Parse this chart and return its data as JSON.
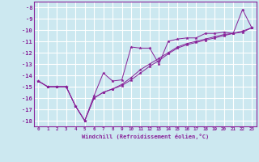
{
  "xlabel": "Windchill (Refroidissement éolien,°C)",
  "background_color": "#cce8f0",
  "grid_color": "#ffffff",
  "line_color": "#882299",
  "x_values": [
    0,
    1,
    2,
    3,
    4,
    5,
    6,
    7,
    8,
    9,
    10,
    11,
    12,
    13,
    14,
    15,
    16,
    17,
    18,
    19,
    20,
    21,
    22,
    23
  ],
  "series1": [
    -14.5,
    -15.0,
    -15.0,
    -15.0,
    -16.7,
    -18.0,
    -15.8,
    -13.8,
    -14.5,
    -14.4,
    -11.5,
    -11.6,
    -11.6,
    -13.0,
    -11.0,
    -10.8,
    -10.7,
    -10.7,
    -10.3,
    -10.3,
    -10.2,
    -10.3,
    -8.2,
    -9.8
  ],
  "series2": [
    -14.5,
    -15.0,
    -15.0,
    -15.0,
    -16.7,
    -18.0,
    -16.0,
    -15.5,
    -15.2,
    -14.8,
    -14.2,
    -13.5,
    -13.0,
    -12.5,
    -12.0,
    -11.5,
    -11.2,
    -11.0,
    -10.8,
    -10.6,
    -10.4,
    -10.3,
    -10.2,
    -9.8
  ],
  "series3": [
    -14.5,
    -15.0,
    -15.0,
    -15.0,
    -16.7,
    -18.0,
    -16.0,
    -15.5,
    -15.2,
    -14.9,
    -14.4,
    -13.8,
    -13.2,
    -12.7,
    -12.1,
    -11.6,
    -11.3,
    -11.1,
    -10.9,
    -10.7,
    -10.5,
    -10.3,
    -10.1,
    -9.8
  ],
  "ylim": [
    -18.5,
    -7.5
  ],
  "xlim": [
    -0.5,
    23.5
  ],
  "yticks": [
    -18,
    -17,
    -16,
    -15,
    -14,
    -13,
    -12,
    -11,
    -10,
    -9,
    -8
  ],
  "xticks": [
    0,
    1,
    2,
    3,
    4,
    5,
    6,
    7,
    8,
    9,
    10,
    11,
    12,
    13,
    14,
    15,
    16,
    17,
    18,
    19,
    20,
    21,
    22,
    23
  ]
}
